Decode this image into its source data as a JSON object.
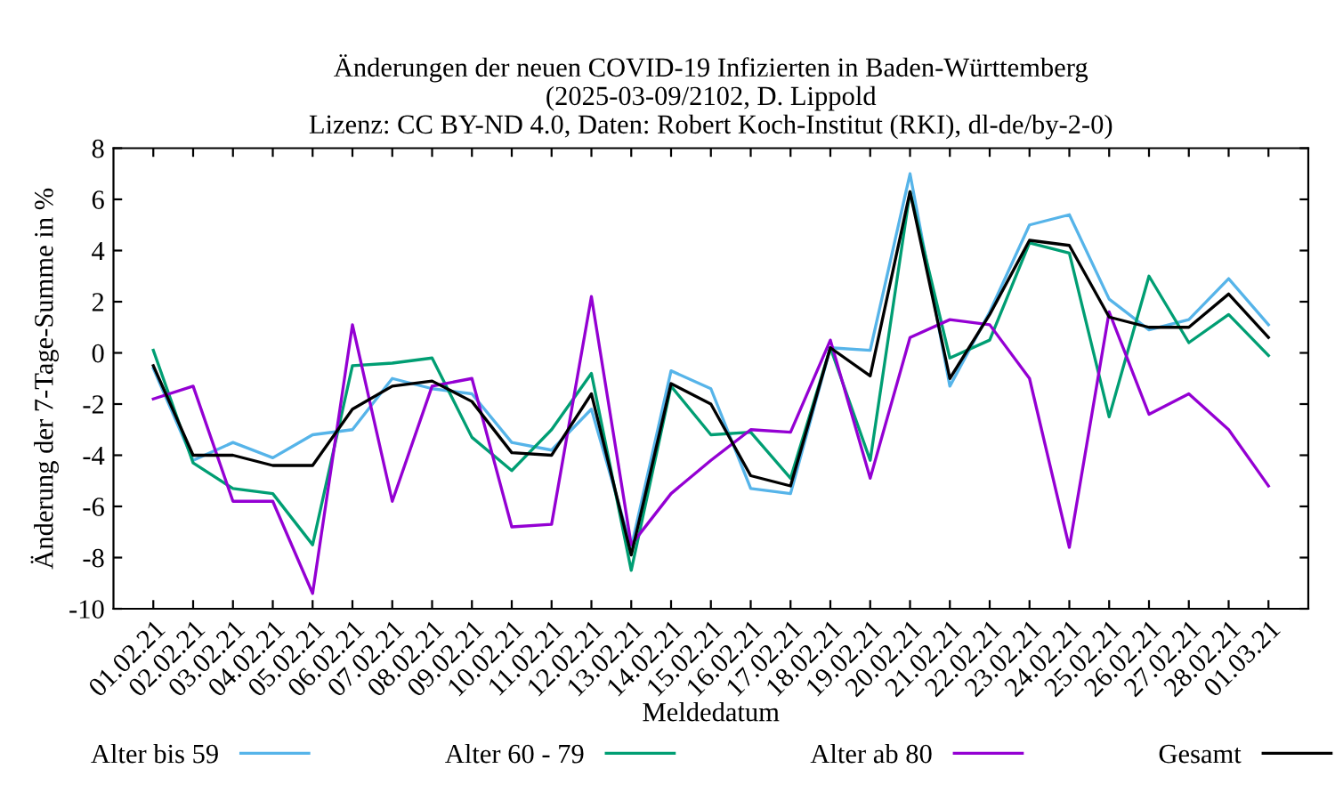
{
  "chart_data": {
    "type": "line",
    "title": "Änderungen der neuen COVID-19 Infizierten in Baden-Württemberg\n(2025-03-09/2102, D. Lippold\nLizenz: CC BY-ND 4.0, Daten: Robert Koch-Institut (RKI), dl-de/by-2-0)",
    "xlabel": "Meldedatum",
    "ylabel": "Änderung der 7-Tage-Summe in %",
    "categories": [
      "01.02.21",
      "02.02.21",
      "03.02.21",
      "04.02.21",
      "05.02.21",
      "06.02.21",
      "07.02.21",
      "08.02.21",
      "09.02.21",
      "10.02.21",
      "11.02.21",
      "12.02.21",
      "13.02.21",
      "14.02.21",
      "15.02.21",
      "16.02.21",
      "17.02.21",
      "18.02.21",
      "19.02.21",
      "20.02.21",
      "21.02.21",
      "22.02.21",
      "23.02.21",
      "24.02.21",
      "25.02.21",
      "26.02.21",
      "27.02.21",
      "28.02.21",
      "01.03.21"
    ],
    "series": [
      {
        "name": "Alter bis 59",
        "color": "#56b4e9",
        "values": [
          -0.6,
          -4.2,
          -3.5,
          -4.1,
          -3.2,
          -3.0,
          -1.0,
          -1.4,
          -1.6,
          -3.5,
          -3.8,
          -2.2,
          -7.6,
          -0.7,
          -1.4,
          -5.3,
          -5.5,
          0.2,
          0.1,
          7.0,
          -1.3,
          1.6,
          5.0,
          5.4,
          2.1,
          0.9,
          1.3,
          2.9,
          1.1
        ]
      },
      {
        "name": "Alter 60 - 79",
        "color": "#009e73",
        "values": [
          0.1,
          -4.3,
          -5.3,
          -5.5,
          -7.5,
          -0.5,
          -0.4,
          -0.2,
          -3.3,
          -4.6,
          -3.0,
          -0.8,
          -8.5,
          -1.3,
          -3.2,
          -3.1,
          -4.9,
          0.2,
          -4.2,
          6.3,
          -0.2,
          0.5,
          4.3,
          3.9,
          -2.5,
          3.0,
          0.4,
          1.5,
          -0.1
        ]
      },
      {
        "name": "Alter ab 80",
        "color": "#9400d3",
        "values": [
          -1.8,
          -1.3,
          -5.8,
          -5.8,
          -9.4,
          1.1,
          -5.8,
          -1.3,
          -1.0,
          -6.8,
          -6.7,
          2.2,
          -7.5,
          -5.5,
          -4.2,
          -3.0,
          -3.1,
          0.5,
          -4.9,
          0.6,
          1.3,
          1.1,
          -1.0,
          -7.6,
          1.6,
          -2.4,
          -1.6,
          -3.0,
          -5.2
        ]
      },
      {
        "name": "Gesamt",
        "color": "#000000",
        "values": [
          -0.5,
          -4.0,
          -4.0,
          -4.4,
          -4.4,
          -2.2,
          -1.3,
          -1.1,
          -1.9,
          -3.9,
          -4.0,
          -1.6,
          -7.9,
          -1.2,
          -2.0,
          -4.8,
          -5.2,
          0.2,
          -0.9,
          6.3,
          -1.0,
          1.5,
          4.4,
          4.2,
          1.4,
          1.0,
          1.0,
          2.3,
          0.6
        ]
      }
    ],
    "ylim": [
      -10,
      8
    ],
    "yticks": [
      -10,
      -8,
      -6,
      -4,
      -2,
      0,
      2,
      4,
      6,
      8
    ],
    "grid": false,
    "legend": "bottom",
    "marker": "none",
    "line_style": "solid"
  }
}
